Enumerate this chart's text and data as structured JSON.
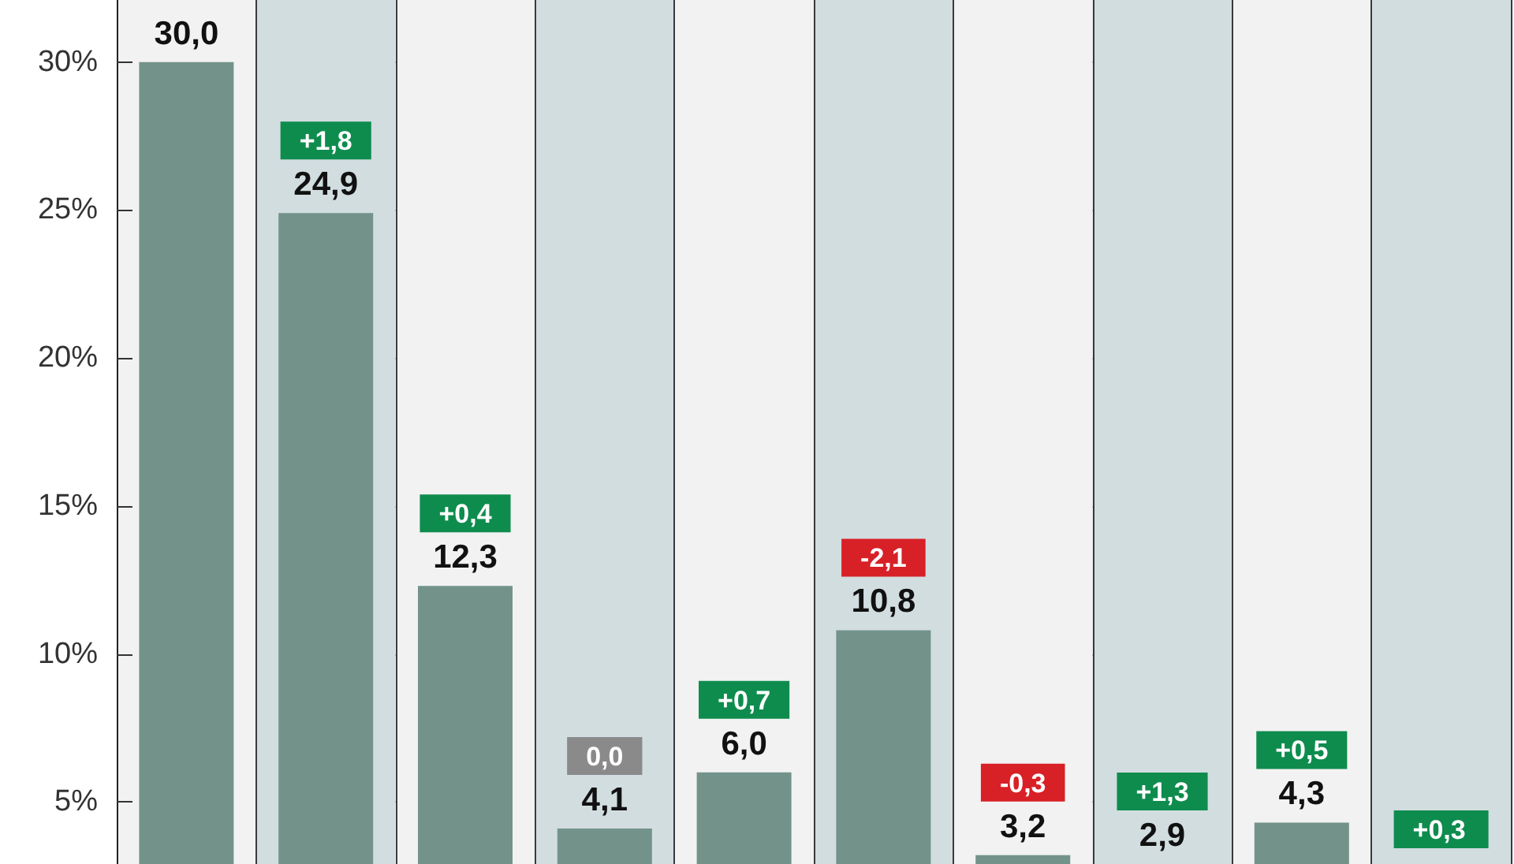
{
  "chart_data": {
    "type": "bar",
    "categories": [
      null,
      null,
      null,
      null,
      null,
      null,
      null,
      null,
      null,
      null
    ],
    "values": [
      30.0,
      24.9,
      12.3,
      4.1,
      6.0,
      10.8,
      3.2,
      2.9,
      4.3,
      null
    ],
    "color": "#73938a",
    "value_labels": [
      "30,0",
      "+1,8\n24,9",
      "+0,4\n12,3",
      "0,0\n4,1",
      "+0,7\n6,0",
      "-2,1\n10,8",
      "-0,3\n3,2",
      "+1,3\n2,9",
      "+0,5\n4,3",
      null
    ],
    "annotations": [
      "+0,3"
    ],
    "ylim": [
      2.9,
      32.1
    ],
    "yticks": [
      {
        "value": 5,
        "label": "5%"
      },
      {
        "value": 10,
        "label": "10%"
      },
      {
        "value": 15,
        "label": "15%"
      },
      {
        "value": 20,
        "label": "20%"
      },
      {
        "value": 25,
        "label": "25%"
      },
      {
        "value": 30,
        "label": "30%"
      }
    ],
    "tick_labels": "y",
    "grid": true
  }
}
